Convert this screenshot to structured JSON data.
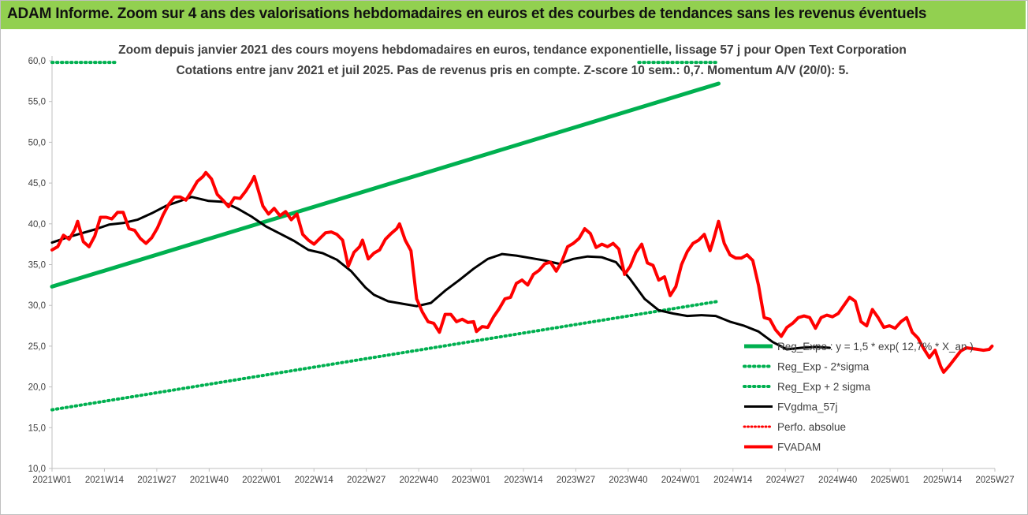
{
  "header": {
    "title": "ADAM Informe. Zoom sur 4 ans des valorisations hebdomadaires en euros et des courbes de tendances sans les revenus éventuels"
  },
  "colors": {
    "header_bg": "#92d050",
    "reg_expo": "#00b050",
    "sigma": "#00b050",
    "fvgdma": "#000000",
    "perfo": "#ff0000",
    "fvadam": "#ff0000"
  },
  "chart_data": {
    "type": "line",
    "title_line1": "Zoom depuis janvier 2021 des cours moyens hebdomadaires en euros, tendance exponentielle, lissage 57 j pour Open Text Corporation",
    "title_line2": "Cotations entre janv 2021 et juil 2025. Pas de revenus pris en compte. Z-score 10 sem.: 0,7. Momentum A/V (20/0): 5.",
    "ylim": [
      10,
      60
    ],
    "y_ticks": [
      "10,0",
      "15,0",
      "20,0",
      "25,0",
      "30,0",
      "35,0",
      "40,0",
      "45,0",
      "50,0",
      "55,0",
      "60,0"
    ],
    "x_ticks": [
      "2021W01",
      "2021W14",
      "2021W27",
      "2021W40",
      "2022W01",
      "2022W14",
      "2022W27",
      "2022W40",
      "2023W01",
      "2023W14",
      "2023W27",
      "2023W40",
      "2024W01",
      "2024W14",
      "2024W27",
      "2024W40",
      "2025W01",
      "2025W14",
      "2025W27"
    ],
    "grid": false,
    "legend_placement": "bottom-right",
    "series": [
      {
        "name": "Reg_Expo : y = 1,5 * exp( 12,7% * X_an )",
        "key": "reg_expo",
        "style": "solid",
        "points": [
          [
            0,
            32.3
          ],
          [
            234,
            57.2
          ]
        ]
      },
      {
        "name": "Reg_Exp - 2*sigma",
        "key": "sigma_low",
        "style": "dotted",
        "points": [
          [
            0,
            17.2
          ],
          [
            234,
            30.5
          ]
        ]
      },
      {
        "name": "Reg_Exp + 2 sigma",
        "key": "sigma_high",
        "style": "dotted",
        "points": [
          [
            0,
            59.8
          ],
          [
            22,
            59.8
          ],
          [
            206,
            59.8
          ],
          [
            234,
            59.8
          ]
        ],
        "visible_segments": [
          [
            0,
            22
          ],
          [
            206,
            234
          ]
        ]
      },
      {
        "name": "FVgdma_57j",
        "key": "fvgdma",
        "style": "solid",
        "points": [
          [
            0,
            37.7
          ],
          [
            5,
            38.3
          ],
          [
            10,
            38.8
          ],
          [
            15,
            39.3
          ],
          [
            20,
            39.9
          ],
          [
            25,
            40.1
          ],
          [
            30,
            40.5
          ],
          [
            35,
            41.3
          ],
          [
            40,
            42.2
          ],
          [
            45,
            42.8
          ],
          [
            49,
            43.3
          ],
          [
            55,
            42.8
          ],
          [
            60,
            42.7
          ],
          [
            65,
            41.9
          ],
          [
            70,
            40.9
          ],
          [
            75,
            39.7
          ],
          [
            80,
            38.8
          ],
          [
            85,
            37.9
          ],
          [
            90,
            36.8
          ],
          [
            95,
            36.4
          ],
          [
            100,
            35.6
          ],
          [
            105,
            34.2
          ],
          [
            110,
            32.2
          ],
          [
            113,
            31.3
          ],
          [
            118,
            30.5
          ],
          [
            123,
            30.2
          ],
          [
            128,
            29.9
          ],
          [
            133,
            30.3
          ],
          [
            138,
            31.8
          ],
          [
            143,
            33.1
          ],
          [
            148,
            34.5
          ],
          [
            153,
            35.7
          ],
          [
            158,
            36.3
          ],
          [
            163,
            36.1
          ],
          [
            168,
            35.8
          ],
          [
            173,
            35.5
          ],
          [
            178,
            35.1
          ],
          [
            183,
            35.7
          ],
          [
            188,
            36.0
          ],
          [
            193,
            35.9
          ],
          [
            198,
            35.3
          ],
          [
            203,
            33.2
          ],
          [
            208,
            30.8
          ],
          [
            213,
            29.4
          ],
          [
            218,
            29.0
          ],
          [
            223,
            28.7
          ],
          [
            228,
            28.8
          ],
          [
            233,
            28.7
          ],
          [
            238,
            28.0
          ],
          [
            243,
            27.5
          ],
          [
            248,
            26.8
          ],
          [
            253,
            25.5
          ],
          [
            258,
            24.6
          ],
          [
            263,
            24.8
          ],
          [
            268,
            24.9
          ],
          [
            273,
            24.8
          ]
        ]
      },
      {
        "name": "Perfo. absolue",
        "key": "perfo",
        "style": "dotted",
        "points": []
      },
      {
        "name": "FVADAM",
        "key": "fvadam",
        "style": "solid",
        "points": [
          [
            0,
            36.8
          ],
          [
            2,
            37.2
          ],
          [
            4,
            38.6
          ],
          [
            6,
            38.1
          ],
          [
            8,
            39.3
          ],
          [
            9,
            40.3
          ],
          [
            11,
            37.8
          ],
          [
            13,
            37.2
          ],
          [
            15,
            38.5
          ],
          [
            17,
            40.8
          ],
          [
            19,
            40.8
          ],
          [
            21,
            40.6
          ],
          [
            23,
            41.4
          ],
          [
            25,
            41.4
          ],
          [
            27,
            39.4
          ],
          [
            29,
            39.2
          ],
          [
            31,
            38.2
          ],
          [
            33,
            37.6
          ],
          [
            35,
            38.3
          ],
          [
            37,
            39.5
          ],
          [
            39,
            41.1
          ],
          [
            41,
            42.4
          ],
          [
            43,
            43.3
          ],
          [
            45,
            43.3
          ],
          [
            47,
            42.9
          ],
          [
            49,
            44.0
          ],
          [
            51,
            45.2
          ],
          [
            53,
            45.8
          ],
          [
            54,
            46.3
          ],
          [
            56,
            45.5
          ],
          [
            58,
            43.6
          ],
          [
            60,
            42.9
          ],
          [
            62,
            42.1
          ],
          [
            64,
            43.2
          ],
          [
            66,
            43.1
          ],
          [
            68,
            44.0
          ],
          [
            70,
            45.1
          ],
          [
            71,
            45.8
          ],
          [
            73,
            43.4
          ],
          [
            74,
            42.2
          ],
          [
            76,
            41.2
          ],
          [
            78,
            41.9
          ],
          [
            80,
            41.0
          ],
          [
            82,
            41.5
          ],
          [
            84,
            40.5
          ],
          [
            86,
            41.2
          ],
          [
            88,
            38.7
          ],
          [
            90,
            38.0
          ],
          [
            92,
            37.5
          ],
          [
            94,
            38.2
          ],
          [
            96,
            38.9
          ],
          [
            98,
            39.0
          ],
          [
            100,
            38.7
          ],
          [
            102,
            38.0
          ],
          [
            104,
            34.8
          ],
          [
            106,
            36.5
          ],
          [
            108,
            37.2
          ],
          [
            109,
            38.0
          ],
          [
            111,
            35.7
          ],
          [
            113,
            36.4
          ],
          [
            115,
            36.8
          ],
          [
            117,
            38.1
          ],
          [
            119,
            38.8
          ],
          [
            121,
            39.4
          ],
          [
            122,
            40.0
          ],
          [
            124,
            38.0
          ],
          [
            126,
            36.7
          ],
          [
            128,
            30.8
          ],
          [
            130,
            29.2
          ],
          [
            132,
            28.0
          ],
          [
            134,
            27.8
          ],
          [
            136,
            26.7
          ],
          [
            138,
            28.9
          ],
          [
            140,
            28.9
          ],
          [
            142,
            28.0
          ],
          [
            144,
            28.3
          ],
          [
            146,
            27.9
          ],
          [
            148,
            28.0
          ],
          [
            149,
            26.8
          ],
          [
            151,
            27.4
          ],
          [
            153,
            27.3
          ],
          [
            155,
            28.6
          ],
          [
            157,
            29.6
          ],
          [
            159,
            30.8
          ],
          [
            161,
            31.0
          ],
          [
            163,
            32.7
          ],
          [
            165,
            33.1
          ],
          [
            167,
            32.5
          ],
          [
            169,
            33.8
          ],
          [
            171,
            34.3
          ],
          [
            173,
            35.1
          ],
          [
            175,
            35.3
          ],
          [
            177,
            34.2
          ],
          [
            179,
            35.4
          ],
          [
            181,
            37.2
          ],
          [
            183,
            37.6
          ],
          [
            185,
            38.2
          ],
          [
            187,
            39.4
          ],
          [
            189,
            38.8
          ],
          [
            191,
            37.1
          ],
          [
            193,
            37.5
          ],
          [
            195,
            37.2
          ],
          [
            197,
            37.6
          ],
          [
            199,
            36.9
          ],
          [
            201,
            33.8
          ],
          [
            203,
            34.8
          ],
          [
            205,
            36.5
          ],
          [
            207,
            37.5
          ],
          [
            209,
            35.2
          ],
          [
            211,
            34.9
          ],
          [
            213,
            33.1
          ],
          [
            215,
            33.5
          ],
          [
            217,
            31.2
          ],
          [
            219,
            32.3
          ],
          [
            221,
            35.0
          ],
          [
            223,
            36.6
          ],
          [
            225,
            37.6
          ],
          [
            227,
            38.0
          ],
          [
            229,
            38.7
          ],
          [
            231,
            36.7
          ],
          [
            232,
            37.8
          ],
          [
            234,
            40.3
          ],
          [
            236,
            37.6
          ],
          [
            238,
            36.2
          ],
          [
            240,
            35.8
          ],
          [
            242,
            35.8
          ],
          [
            244,
            36.2
          ],
          [
            246,
            35.5
          ],
          [
            248,
            32.5
          ],
          [
            250,
            28.5
          ],
          [
            252,
            28.3
          ],
          [
            254,
            27.0
          ],
          [
            256,
            26.2
          ],
          [
            258,
            27.3
          ],
          [
            260,
            27.8
          ],
          [
            262,
            28.5
          ],
          [
            264,
            28.7
          ],
          [
            266,
            28.5
          ],
          [
            268,
            27.2
          ],
          [
            270,
            28.5
          ],
          [
            272,
            28.8
          ],
          [
            274,
            28.6
          ],
          [
            276,
            29.0
          ],
          [
            278,
            30.0
          ],
          [
            280,
            31.0
          ],
          [
            282,
            30.5
          ],
          [
            284,
            28.0
          ],
          [
            286,
            27.5
          ],
          [
            288,
            29.5
          ],
          [
            290,
            28.5
          ],
          [
            292,
            27.3
          ],
          [
            294,
            27.5
          ],
          [
            296,
            27.2
          ],
          [
            298,
            28.0
          ],
          [
            300,
            28.5
          ],
          [
            302,
            26.7
          ],
          [
            304,
            26.0
          ],
          [
            306,
            24.7
          ],
          [
            308,
            23.6
          ],
          [
            310,
            24.5
          ],
          [
            312,
            22.5
          ],
          [
            313,
            21.8
          ],
          [
            315,
            22.6
          ],
          [
            317,
            23.5
          ],
          [
            319,
            24.4
          ],
          [
            321,
            24.8
          ],
          [
            323,
            24.7
          ],
          [
            325,
            24.6
          ],
          [
            327,
            24.5
          ],
          [
            329,
            24.6
          ],
          [
            330,
            25.0
          ]
        ]
      }
    ]
  }
}
